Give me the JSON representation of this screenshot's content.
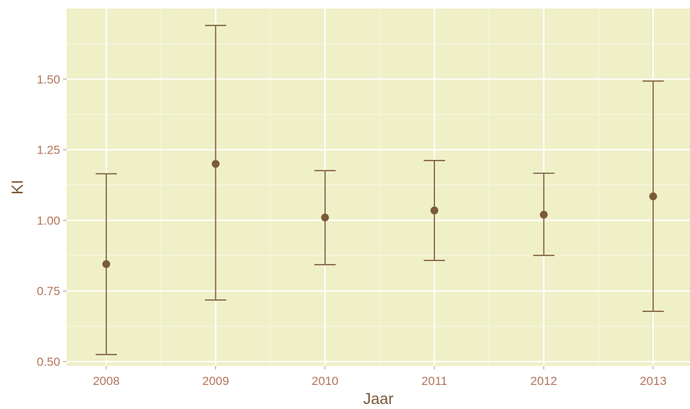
{
  "chart_data": {
    "type": "errorbar",
    "xlabel": "Jaar",
    "ylabel": "KI",
    "categories": [
      "2008",
      "2009",
      "2010",
      "2011",
      "2012",
      "2013"
    ],
    "series": [
      {
        "estimates": [
          0.845,
          1.2,
          1.01,
          1.035,
          1.02,
          1.085
        ],
        "lower": [
          0.525,
          0.718,
          0.843,
          0.858,
          0.876,
          0.678
        ],
        "upper": [
          1.165,
          1.69,
          1.176,
          1.212,
          1.167,
          1.493
        ]
      }
    ],
    "ylim": [
      0.485,
      1.75
    ],
    "yticks": [
      0.5,
      0.75,
      1.0,
      1.25,
      1.5
    ],
    "ytick_labels": [
      "0.50",
      "0.75",
      "1.00",
      "1.25",
      "1.50"
    ],
    "grid": true,
    "colors": {
      "panel_background": "#efefc8",
      "grid": "#ffffff",
      "marks": "#7a5a37",
      "tick_text": "#b2745a",
      "axis_title": "#7a5a37"
    }
  }
}
